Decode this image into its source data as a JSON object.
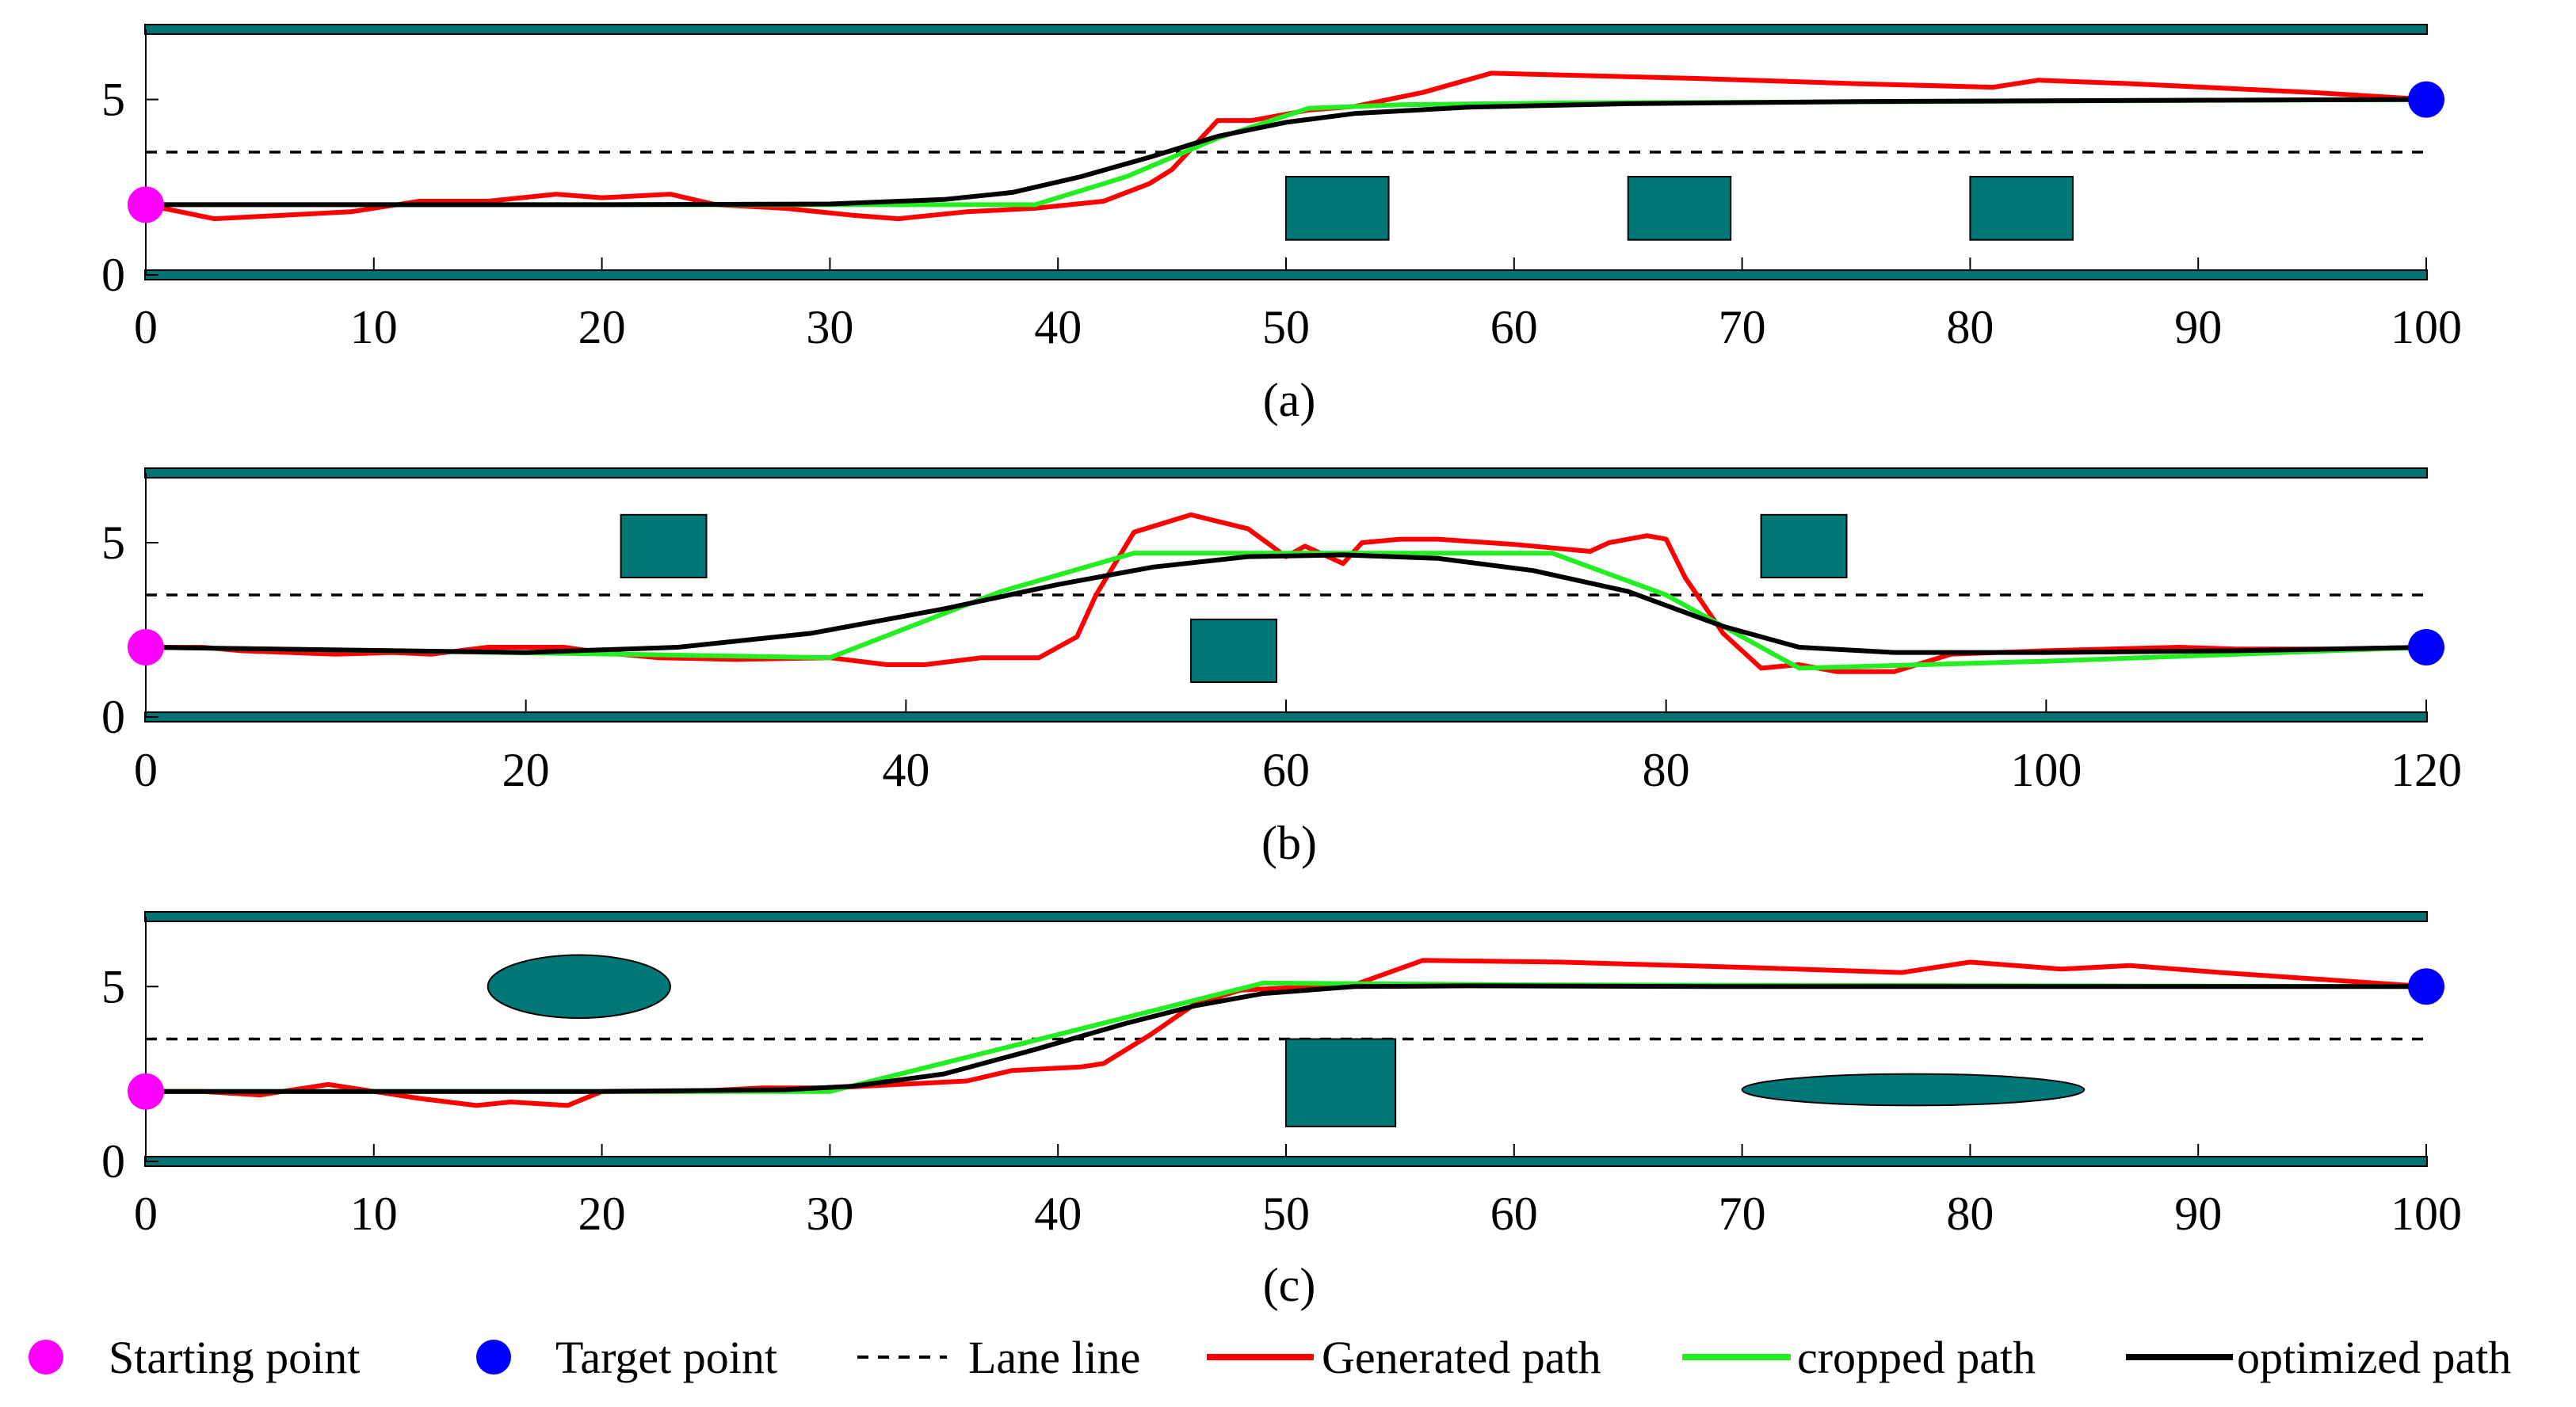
{
  "colors": {
    "road": "#007272",
    "obstacle": "#007878",
    "generated": "#ff0000",
    "cropped": "#22ee22",
    "optimized": "#000000",
    "start": "#ff00ff",
    "target": "#0000ff",
    "lane": "#000000"
  },
  "legend": {
    "start": "Starting point",
    "target": "Target point",
    "lane": "Lane line",
    "generated": "Generated path",
    "cropped": "cropped path",
    "optimized": "optimized path"
  },
  "chart_data": [
    {
      "id": "a",
      "type": "line",
      "caption": "(a)",
      "xlim": [
        0,
        100
      ],
      "ylim": [
        0,
        7
      ],
      "xticks": [
        0,
        10,
        20,
        30,
        40,
        50,
        60,
        70,
        80,
        90,
        100
      ],
      "yticks": [
        0,
        5
      ],
      "road_edges": [
        0,
        7
      ],
      "lane_line_y": 3.5,
      "start": [
        0,
        2
      ],
      "target": [
        100,
        5
      ],
      "obstacles": [
        {
          "shape": "rect",
          "x0": 50,
          "x1": 54.5,
          "y0": 1,
          "y1": 2.8
        },
        {
          "shape": "rect",
          "x0": 65,
          "x1": 69.5,
          "y0": 1,
          "y1": 2.8
        },
        {
          "shape": "rect",
          "x0": 80,
          "x1": 84.5,
          "y0": 1,
          "y1": 2.8
        }
      ],
      "series": [
        {
          "name": "generated",
          "points": [
            [
              0,
              2
            ],
            [
              3,
              1.6
            ],
            [
              6,
              1.7
            ],
            [
              9,
              1.8
            ],
            [
              12,
              2.1
            ],
            [
              15,
              2.1
            ],
            [
              18,
              2.3
            ],
            [
              20,
              2.2
            ],
            [
              23,
              2.3
            ],
            [
              25,
              2
            ],
            [
              28,
              1.9
            ],
            [
              31,
              1.7
            ],
            [
              33,
              1.6
            ],
            [
              36,
              1.8
            ],
            [
              39,
              1.9
            ],
            [
              42,
              2.1
            ],
            [
              44,
              2.6
            ],
            [
              45,
              3
            ],
            [
              46,
              3.7
            ],
            [
              47,
              4.4
            ],
            [
              48.5,
              4.4
            ],
            [
              51,
              4.7
            ],
            [
              53,
              4.8
            ],
            [
              56,
              5.2
            ],
            [
              59,
              5.75
            ],
            [
              62,
              5.7
            ],
            [
              68,
              5.6
            ],
            [
              75,
              5.45
            ],
            [
              81,
              5.35
            ],
            [
              83,
              5.55
            ],
            [
              87,
              5.45
            ],
            [
              95,
              5.2
            ],
            [
              100,
              5
            ]
          ]
        },
        {
          "name": "cropped",
          "points": [
            [
              0,
              2
            ],
            [
              39,
              2
            ],
            [
              43,
              2.8
            ],
            [
              47,
              3.9
            ],
            [
              51,
              4.75
            ],
            [
              55,
              4.85
            ],
            [
              62,
              4.9
            ],
            [
              100,
              5
            ]
          ]
        },
        {
          "name": "optimized",
          "points": [
            [
              0,
              2
            ],
            [
              20,
              2
            ],
            [
              30,
              2.02
            ],
            [
              35,
              2.15
            ],
            [
              38,
              2.35
            ],
            [
              41,
              2.8
            ],
            [
              44,
              3.35
            ],
            [
              47,
              3.95
            ],
            [
              50,
              4.35
            ],
            [
              53,
              4.6
            ],
            [
              58,
              4.78
            ],
            [
              65,
              4.88
            ],
            [
              75,
              4.94
            ],
            [
              90,
              4.98
            ],
            [
              100,
              5
            ]
          ]
        }
      ]
    },
    {
      "id": "b",
      "type": "line",
      "caption": "(b)",
      "xlim": [
        0,
        120
      ],
      "ylim": [
        0,
        7
      ],
      "xticks": [
        0,
        20,
        40,
        60,
        80,
        100,
        120
      ],
      "yticks": [
        0,
        5
      ],
      "road_edges": [
        0,
        7
      ],
      "lane_line_y": 3.5,
      "start": [
        0,
        2
      ],
      "target": [
        120,
        2
      ],
      "obstacles": [
        {
          "shape": "rect",
          "x0": 25,
          "x1": 29.5,
          "y0": 4,
          "y1": 5.8
        },
        {
          "shape": "rect",
          "x0": 55,
          "x1": 59.5,
          "y0": 1,
          "y1": 2.8
        },
        {
          "shape": "rect",
          "x0": 85,
          "x1": 89.5,
          "y0": 4,
          "y1": 5.8
        }
      ],
      "series": [
        {
          "name": "generated",
          "points": [
            [
              0,
              2
            ],
            [
              3,
              2
            ],
            [
              5,
              1.9
            ],
            [
              10,
              1.8
            ],
            [
              13,
              1.85
            ],
            [
              15,
              1.8
            ],
            [
              18,
              2
            ],
            [
              22,
              2
            ],
            [
              24,
              1.85
            ],
            [
              27,
              1.7
            ],
            [
              31,
              1.65
            ],
            [
              36,
              1.7
            ],
            [
              39,
              1.5
            ],
            [
              41,
              1.5
            ],
            [
              44,
              1.7
            ],
            [
              47,
              1.7
            ],
            [
              49,
              2.3
            ],
            [
              50,
              3.5
            ],
            [
              52,
              5.3
            ],
            [
              55,
              5.8
            ],
            [
              58,
              5.4
            ],
            [
              60,
              4.6
            ],
            [
              61,
              4.9
            ],
            [
              63,
              4.4
            ],
            [
              64,
              5
            ],
            [
              66,
              5.1
            ],
            [
              68,
              5.1
            ],
            [
              72,
              4.95
            ],
            [
              76,
              4.75
            ],
            [
              77,
              5
            ],
            [
              79,
              5.2
            ],
            [
              80,
              5.1
            ],
            [
              81,
              4
            ],
            [
              83,
              2.4
            ],
            [
              85,
              1.4
            ],
            [
              87,
              1.5
            ],
            [
              89,
              1.3
            ],
            [
              92,
              1.3
            ],
            [
              95,
              1.8
            ],
            [
              100,
              1.9
            ],
            [
              107,
              2
            ],
            [
              110,
              1.95
            ],
            [
              115,
              1.95
            ],
            [
              120,
              2
            ]
          ]
        },
        {
          "name": "cropped",
          "points": [
            [
              0,
              2
            ],
            [
              25,
              1.8
            ],
            [
              36,
              1.7
            ],
            [
              45,
              3.6
            ],
            [
              52,
              4.7
            ],
            [
              74,
              4.7
            ],
            [
              80,
              3.5
            ],
            [
              87,
              1.4
            ],
            [
              100,
              1.6
            ],
            [
              120,
              2
            ]
          ]
        },
        {
          "name": "optimized",
          "points": [
            [
              0,
              2
            ],
            [
              20,
              1.85
            ],
            [
              28,
              2
            ],
            [
              35,
              2.4
            ],
            [
              42,
              3.1
            ],
            [
              48,
              3.8
            ],
            [
              53,
              4.3
            ],
            [
              58,
              4.6
            ],
            [
              63,
              4.65
            ],
            [
              68,
              4.55
            ],
            [
              73,
              4.2
            ],
            [
              78,
              3.6
            ],
            [
              83,
              2.6
            ],
            [
              87,
              2
            ],
            [
              92,
              1.85
            ],
            [
              100,
              1.85
            ],
            [
              110,
              1.9
            ],
            [
              120,
              2
            ]
          ]
        }
      ]
    },
    {
      "id": "c",
      "type": "line",
      "caption": "(c)",
      "xlim": [
        0,
        100
      ],
      "ylim": [
        0,
        7
      ],
      "xticks": [
        0,
        10,
        20,
        30,
        40,
        50,
        60,
        70,
        80,
        90,
        100
      ],
      "yticks": [
        0,
        5
      ],
      "road_edges": [
        0,
        7
      ],
      "lane_line_y": 3.5,
      "start": [
        0,
        2
      ],
      "target": [
        100,
        5
      ],
      "obstacles": [
        {
          "shape": "ellipse",
          "x0": 15,
          "x1": 23,
          "y0": 4.1,
          "y1": 5.9
        },
        {
          "shape": "rect",
          "x0": 50,
          "x1": 54.8,
          "y0": 1,
          "y1": 3.5
        },
        {
          "shape": "ellipse",
          "x0": 70,
          "x1": 85,
          "y0": 1.6,
          "y1": 2.5
        }
      ],
      "series": [
        {
          "name": "generated",
          "points": [
            [
              0,
              2
            ],
            [
              2.5,
              2
            ],
            [
              5,
              1.9
            ],
            [
              8,
              2.2
            ],
            [
              10,
              2
            ],
            [
              12,
              1.8
            ],
            [
              14.5,
              1.6
            ],
            [
              16,
              1.7
            ],
            [
              18.5,
              1.6
            ],
            [
              20,
              2
            ],
            [
              24,
              2
            ],
            [
              27,
              2.1
            ],
            [
              30,
              2.1
            ],
            [
              33,
              2.2
            ],
            [
              36,
              2.3
            ],
            [
              38,
              2.6
            ],
            [
              41,
              2.7
            ],
            [
              42,
              2.8
            ],
            [
              44,
              3.6
            ],
            [
              46,
              4.5
            ],
            [
              48,
              4.9
            ],
            [
              53,
              5.05
            ],
            [
              56,
              5.75
            ],
            [
              62,
              5.7
            ],
            [
              70,
              5.55
            ],
            [
              77,
              5.4
            ],
            [
              80,
              5.7
            ],
            [
              84,
              5.5
            ],
            [
              87,
              5.6
            ],
            [
              91,
              5.4
            ],
            [
              100,
              5
            ]
          ]
        },
        {
          "name": "cropped",
          "points": [
            [
              0,
              2
            ],
            [
              30,
              2
            ],
            [
              38,
              3.3
            ],
            [
              49,
              5.1
            ],
            [
              60,
              5.05
            ],
            [
              100,
              5
            ]
          ]
        },
        {
          "name": "optimized",
          "points": [
            [
              0,
              2
            ],
            [
              20,
              2
            ],
            [
              28,
              2.05
            ],
            [
              31,
              2.15
            ],
            [
              35,
              2.5
            ],
            [
              39,
              3.2
            ],
            [
              43,
              3.95
            ],
            [
              46,
              4.45
            ],
            [
              49,
              4.8
            ],
            [
              53,
              5
            ],
            [
              58,
              5.02
            ],
            [
              70,
              5
            ],
            [
              100,
              5
            ]
          ]
        }
      ]
    }
  ]
}
